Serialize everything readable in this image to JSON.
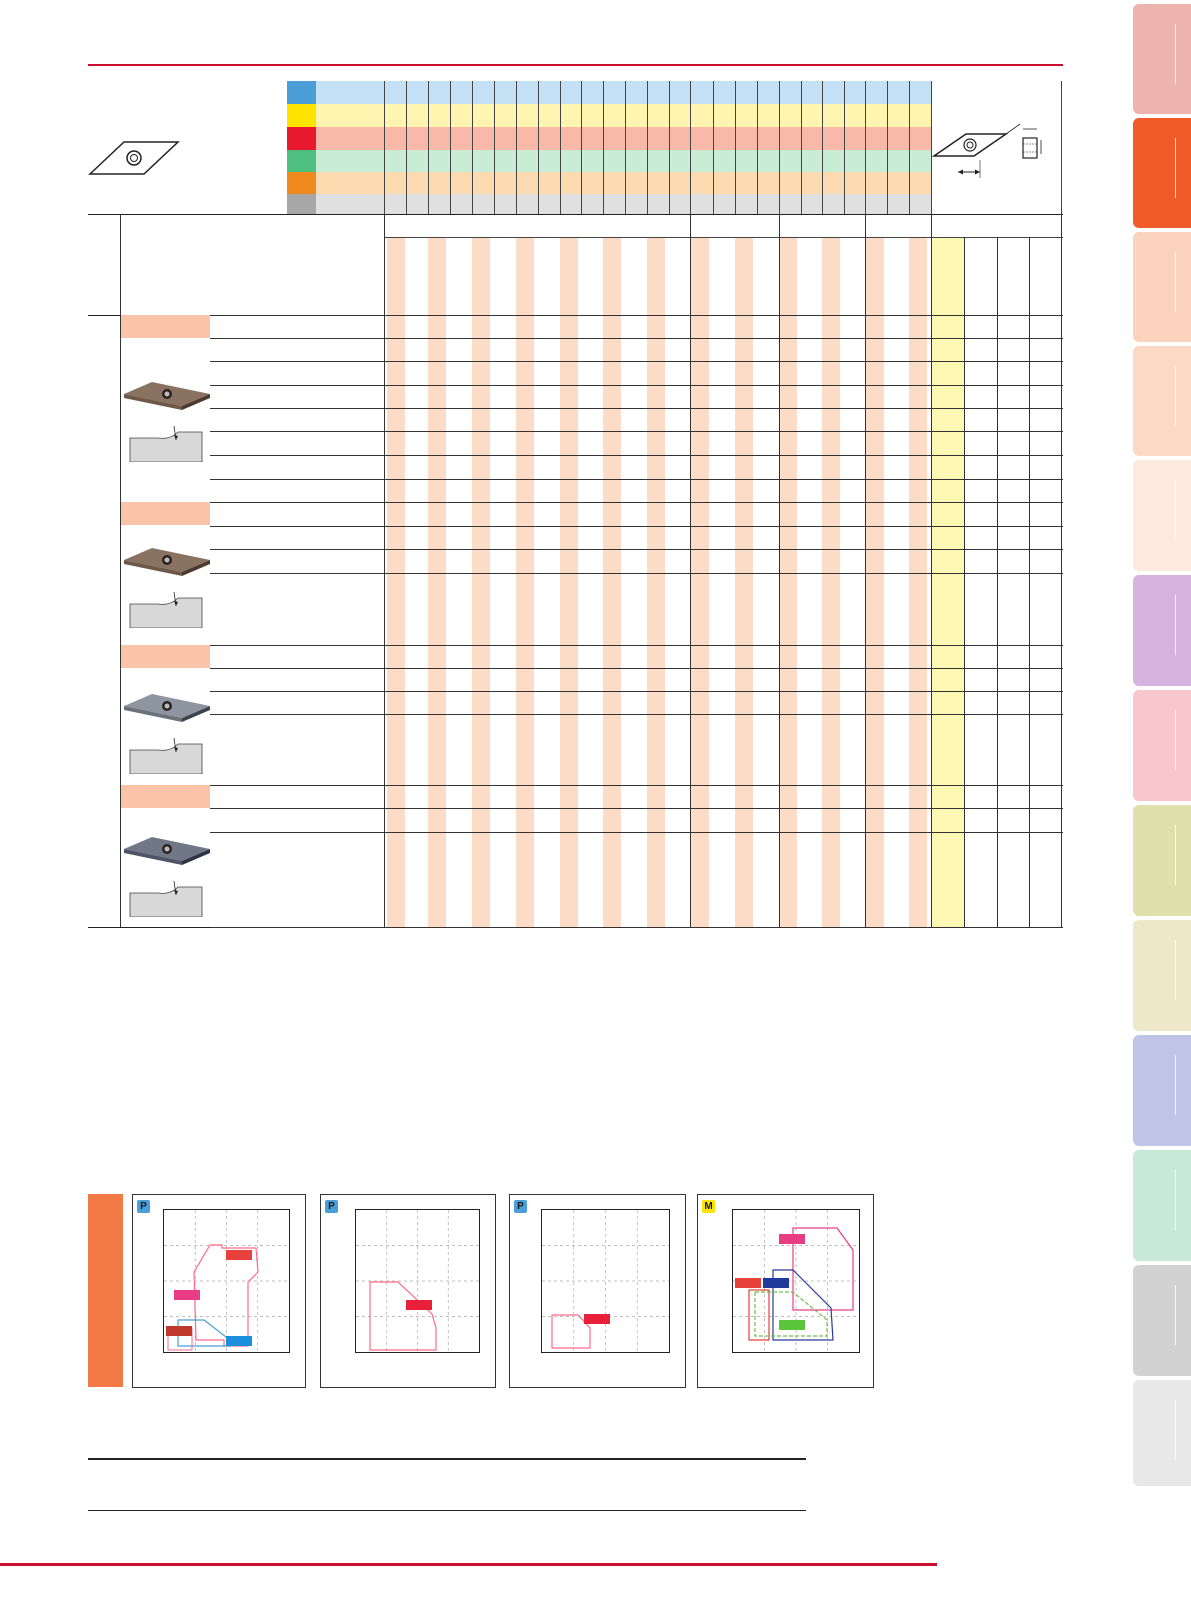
{
  "colors": {
    "accent_red": "#c8102e",
    "group_header_fill": "#f9c4a8",
    "stripe_fill": "#fcdcc6",
    "highlight_column_fill": "#fdf9b4",
    "grade_side_bar": "#f47a45"
  },
  "grade_bands": [
    {
      "iso": "P",
      "color": "#4a9fd8",
      "band": "#c5e1f6"
    },
    {
      "iso": "M",
      "color": "#ffe400",
      "band": "#fff5b0"
    },
    {
      "iso": "K",
      "color": "#e8192c",
      "band": "#fab8a8"
    },
    {
      "iso": "N",
      "color": "#4dbf7f",
      "band": "#c9ecd6"
    },
    {
      "iso": "S",
      "color": "#f08a1c",
      "band": "#fddab0"
    },
    {
      "iso": "H",
      "color": "#a7a7a7",
      "band": "#e0e0e0"
    }
  ],
  "side_tabs": [
    {
      "color": "#edb3ad"
    },
    {
      "color": "#f15a29"
    },
    {
      "color": "#fbd3bc"
    },
    {
      "color": "#fcd9c4"
    },
    {
      "color": "#fdeadf"
    },
    {
      "color": "#d6b3de"
    },
    {
      "color": "#f8c6cc"
    },
    {
      "color": "#e0e0ad"
    },
    {
      "color": "#ece8c8"
    },
    {
      "color": "#c0c4e6"
    },
    {
      "color": "#c8e9d8"
    },
    {
      "color": "#d2d2d2"
    },
    {
      "color": "#e8e8e8"
    }
  ],
  "insert_groups": [
    {
      "id": "group-1",
      "icon": "insert-brown-icon",
      "profile": "chipbreaker-profile-icon"
    },
    {
      "id": "group-2",
      "icon": "insert-brown-icon",
      "profile": "chipbreaker-profile-icon"
    },
    {
      "id": "group-3",
      "icon": "insert-gray-icon",
      "profile": "chipbreaker-profile-icon"
    },
    {
      "id": "group-4",
      "icon": "insert-coated-icon",
      "profile": "chipbreaker-profile-icon"
    }
  ],
  "charts": [
    {
      "badge": "P",
      "badge_color": "#4a9fd8",
      "badge_text_color": "#1a1a1a"
    },
    {
      "badge": "P",
      "badge_color": "#4a9fd8",
      "badge_text_color": "#1a1a1a"
    },
    {
      "badge": "P",
      "badge_color": "#4a9fd8",
      "badge_text_color": "#1a1a1a"
    },
    {
      "badge": "M",
      "badge_color": "#ffe400",
      "badge_text_color": "#1a1a1a"
    }
  ]
}
